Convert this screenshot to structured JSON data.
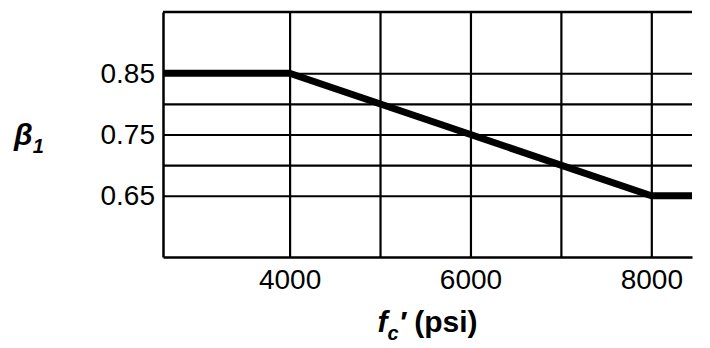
{
  "chart_data": {
    "type": "line",
    "xlabel": "fc′ (psi)",
    "ylabel": "β1",
    "x": [
      2600,
      4000,
      8000,
      8450
    ],
    "values": [
      0.85,
      0.85,
      0.65,
      0.65
    ],
    "color": "#000000",
    "xlim": [
      2600,
      8450
    ],
    "ylim": [
      0.55,
      0.95
    ],
    "xticks": [
      4000,
      {
        "value": 5000,
        "label": null
      },
      6000,
      {
        "value": 7000,
        "label": null
      },
      8000
    ],
    "yticks": [
      0.65,
      {
        "value": 0.7,
        "label": null
      },
      0.75,
      {
        "value": 0.8,
        "label": null
      },
      0.85
    ],
    "grid": true
  }
}
